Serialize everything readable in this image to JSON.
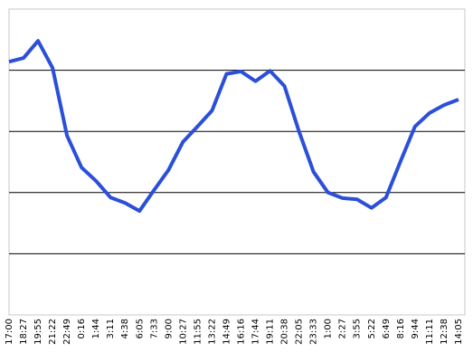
{
  "chart_data": {
    "type": "line",
    "categories": [
      "17:00",
      "18:27",
      "19:55",
      "21:22",
      "22:49",
      "0:16",
      "1:44",
      "3:11",
      "4:38",
      "6:05",
      "7:33",
      "9:00",
      "10:27",
      "11:55",
      "13:22",
      "14:49",
      "16:16",
      "17:44",
      "19:11",
      "20:38",
      "22:05",
      "23:33",
      "1:00",
      "2:27",
      "3:55",
      "5:22",
      "6:49",
      "8:16",
      "9:44",
      "11:11",
      "12:38",
      "14:05"
    ],
    "values": [
      4.14,
      4.2,
      4.48,
      4.04,
      2.93,
      2.41,
      2.19,
      1.92,
      1.83,
      1.7,
      2.04,
      2.37,
      2.83,
      3.08,
      3.34,
      3.94,
      3.98,
      3.82,
      3.99,
      3.74,
      3.0,
      2.34,
      2.0,
      1.91,
      1.89,
      1.75,
      1.92,
      2.51,
      3.08,
      3.3,
      3.43,
      3.52
    ],
    "color": "#2b4fd8",
    "ylim": [
      0,
      5
    ],
    "yticks": [
      1,
      2,
      3,
      4
    ],
    "grid": true
  }
}
